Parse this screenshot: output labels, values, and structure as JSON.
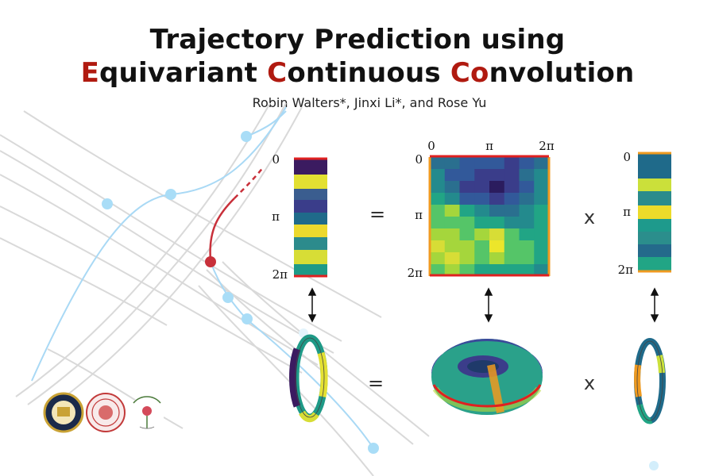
{
  "title": {
    "line1": "Trajectory Prediction using",
    "line2": [
      {
        "text": "E",
        "red": true
      },
      {
        "text": "quivariant ",
        "red": false
      },
      {
        "text": "C",
        "red": true
      },
      {
        "text": "ontinuous ",
        "red": false
      },
      {
        "text": "Co",
        "red": true
      },
      {
        "text": "nvolution",
        "red": false
      }
    ]
  },
  "authors": "Robin Walters*, Jinxi Li*, and Rose Yu",
  "figure": {
    "left_ticks": [
      "0",
      "π",
      "2π"
    ],
    "matrix_top_ticks": [
      "0",
      "π",
      "2π"
    ],
    "matrix_left_ticks": [
      "0",
      "π",
      "2π"
    ],
    "right_ticks": [
      "0",
      "π",
      "2π"
    ],
    "equals": "=",
    "times": "x"
  },
  "colors": {
    "accent_red": "#b01a10",
    "trajectory": "#c8303a",
    "lane_blue": "#9fd4f2"
  }
}
